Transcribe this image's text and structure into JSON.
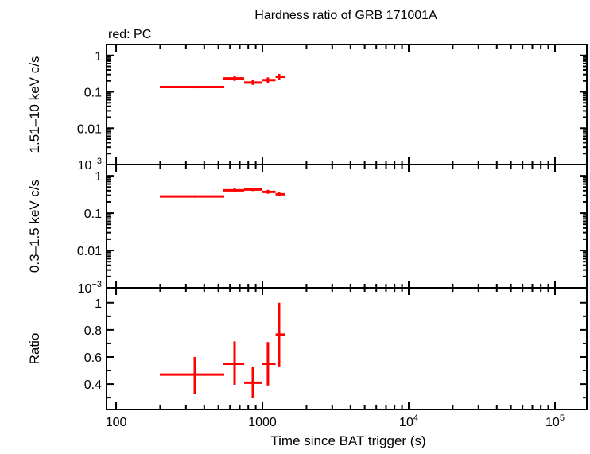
{
  "chart_data": {
    "type": "scatter",
    "title": "Hardness ratio of GRB 171001A",
    "legend_note": "red: PC",
    "xlabel": "Time since BAT trigger (s)",
    "xscale": "log",
    "xlim": [
      86,
      165000
    ],
    "x_ticks": [
      {
        "value": 100,
        "label": "100"
      },
      {
        "value": 1000,
        "label": "1000"
      },
      {
        "value": 10000,
        "label": "10",
        "exp": "4"
      },
      {
        "value": 100000,
        "label": "10",
        "exp": "5"
      }
    ],
    "color": "#ff0000",
    "panels": [
      {
        "ylabel": "1.51–10 keV c/s",
        "yscale": "log",
        "ylim": [
          0.001,
          2
        ],
        "y_ticks": [
          {
            "value": 1,
            "label": "1"
          },
          {
            "value": 0.1,
            "label": "0.1"
          },
          {
            "value": 0.01,
            "label": "0.01"
          },
          {
            "value": 0.001,
            "label": "10",
            "exp": "−3"
          }
        ],
        "points": [
          {
            "x": 345,
            "xlo": 199,
            "xhi": 548,
            "y": 0.135,
            "ylo": 0.125,
            "yhi": 0.145
          },
          {
            "x": 645,
            "xlo": 535,
            "xhi": 750,
            "y": 0.234,
            "ylo": 0.2,
            "yhi": 0.27
          },
          {
            "x": 860,
            "xlo": 750,
            "xhi": 1000,
            "y": 0.18,
            "ylo": 0.155,
            "yhi": 0.21
          },
          {
            "x": 1090,
            "xlo": 1000,
            "xhi": 1230,
            "y": 0.21,
            "ylo": 0.175,
            "yhi": 0.25
          },
          {
            "x": 1300,
            "xlo": 1230,
            "xhi": 1420,
            "y": 0.26,
            "ylo": 0.215,
            "yhi": 0.31
          }
        ]
      },
      {
        "ylabel": "0.3–1.5 keV c/s",
        "yscale": "log",
        "ylim": [
          0.001,
          2
        ],
        "y_ticks": [
          {
            "value": 1,
            "label": "1"
          },
          {
            "value": 0.1,
            "label": "0.1"
          },
          {
            "value": 0.01,
            "label": "0.01"
          },
          {
            "value": 0.001,
            "label": "10",
            "exp": "−3"
          }
        ],
        "points": [
          {
            "x": 345,
            "xlo": 199,
            "xhi": 548,
            "y": 0.28,
            "ylo": 0.26,
            "yhi": 0.3
          },
          {
            "x": 645,
            "xlo": 535,
            "xhi": 750,
            "y": 0.41,
            "ylo": 0.37,
            "yhi": 0.46
          },
          {
            "x": 860,
            "xlo": 750,
            "xhi": 1000,
            "y": 0.43,
            "ylo": 0.39,
            "yhi": 0.47
          },
          {
            "x": 1090,
            "xlo": 1000,
            "xhi": 1230,
            "y": 0.37,
            "ylo": 0.33,
            "yhi": 0.42
          },
          {
            "x": 1300,
            "xlo": 1230,
            "xhi": 1420,
            "y": 0.32,
            "ylo": 0.28,
            "yhi": 0.37
          }
        ]
      },
      {
        "ylabel": "Ratio",
        "yscale": "linear",
        "ylim": [
          0.213,
          1.11
        ],
        "y_ticks": [
          {
            "value": 1,
            "label": "1"
          },
          {
            "value": 0.8,
            "label": "0.8"
          },
          {
            "value": 0.6,
            "label": "0.6"
          },
          {
            "value": 0.4,
            "label": "0.4"
          }
        ],
        "points": [
          {
            "x": 345,
            "xlo": 199,
            "xhi": 548,
            "y": 0.47,
            "ylo": 0.33,
            "yhi": 0.6
          },
          {
            "x": 645,
            "xlo": 535,
            "xhi": 750,
            "y": 0.55,
            "ylo": 0.395,
            "yhi": 0.715
          },
          {
            "x": 860,
            "xlo": 750,
            "xhi": 1000,
            "y": 0.41,
            "ylo": 0.3,
            "yhi": 0.53
          },
          {
            "x": 1090,
            "xlo": 1000,
            "xhi": 1230,
            "y": 0.55,
            "ylo": 0.39,
            "yhi": 0.71
          },
          {
            "x": 1300,
            "xlo": 1230,
            "xhi": 1420,
            "y": 0.765,
            "ylo": 0.53,
            "yhi": 1.0
          }
        ]
      }
    ]
  }
}
